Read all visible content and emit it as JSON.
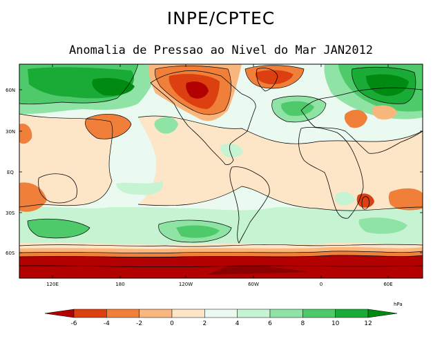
{
  "header": {
    "title": "INPE/CPTEC",
    "subtitle": "Anomalia de Pressao ao Nivel do Mar JAN2012"
  },
  "map": {
    "lat_ticks": [
      "60N",
      "30N",
      "EQ",
      "30S",
      "60S"
    ],
    "lon_ticks": [
      "120E",
      "180",
      "120W",
      "60W",
      "0",
      "60E"
    ],
    "legend_unit": "hPa",
    "colorbar_ticks": [
      "-6",
      "-4",
      "-2",
      "0",
      "2",
      "4",
      "6",
      "8",
      "10",
      "12"
    ],
    "colorbar_colors": [
      "#b30000",
      "#dd4010",
      "#f07f3a",
      "#f9b67d",
      "#fde5c7",
      "#eafaf0",
      "#c6f3d2",
      "#8fe3a5",
      "#4fca6b",
      "#1aaa36",
      "#008a12"
    ]
  }
}
